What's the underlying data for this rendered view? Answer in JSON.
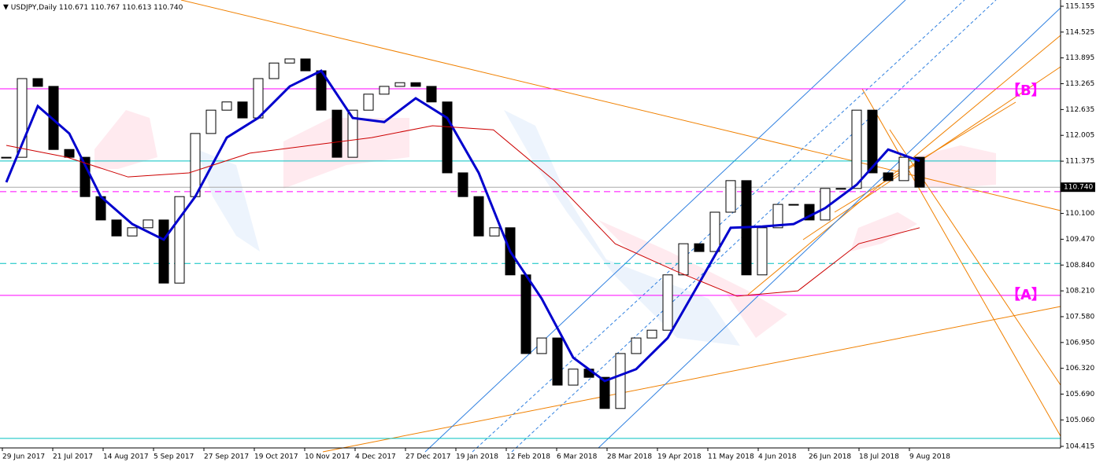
{
  "header": {
    "symbol": "USDJPY,Daily",
    "ohlc": "110.671 110.767 110.613 110.740"
  },
  "annotations": [
    "【B】",
    "【A】"
  ],
  "chart_data": {
    "type": "candlestick",
    "closes": [
      111.47,
      113.39,
      113.2,
      111.66,
      111.47,
      110.51,
      109.94,
      109.55,
      109.75,
      109.94,
      108.4,
      110.51,
      112.05,
      112.62,
      112.82,
      112.43,
      113.39,
      113.77,
      113.87,
      113.58,
      112.62,
      111.47,
      112.62,
      113.01,
      113.2,
      113.29,
      113.2,
      112.82,
      111.09,
      110.51,
      109.55,
      109.75,
      108.6,
      106.68,
      107.06,
      105.91,
      106.3,
      106.1,
      105.34,
      106.68,
      107.06,
      107.25,
      108.6,
      109.36,
      109.17,
      110.13,
      110.9,
      108.6,
      109.75,
      110.32,
      110.32,
      109.94,
      110.71,
      110.71,
      112.62,
      111.09,
      110.9,
      111.47,
      110.74
    ],
    "moving_averages": [
      {
        "color": "#0000cd",
        "values": [
          110.86,
          112.72,
          112.05,
          110.51,
          109.84,
          109.46,
          110.51,
          111.95,
          112.43,
          113.2,
          113.58,
          112.43,
          112.33,
          112.91,
          112.43,
          111.09,
          109.17,
          108.02,
          106.58,
          106.01,
          106.3,
          107.06,
          108.4,
          109.75,
          109.78,
          109.84,
          110.23,
          110.8,
          111.66,
          111.38
        ]
      },
      {
        "color": "#cc0000",
        "values": [
          111.76,
          111.47,
          110.99,
          111.09,
          111.57,
          111.76,
          111.95,
          112.24,
          112.14,
          110.9,
          109.36,
          108.69,
          108.08,
          108.21,
          109.36,
          109.75
        ]
      }
    ],
    "levels": [
      {
        "value": 113.14,
        "color": "#ff00ff",
        "dashed": false
      },
      {
        "value": 111.38,
        "color": "#00c0c0",
        "dashed": false
      },
      {
        "value": 110.63,
        "color": "#ff00ff",
        "dashed": true
      },
      {
        "value": 108.88,
        "color": "#00c0c0",
        "dashed": true
      },
      {
        "value": 108.1,
        "color": "#ff00ff",
        "dashed": false
      },
      {
        "value": 104.61,
        "color": "#00c0c0",
        "dashed": false
      }
    ],
    "price_label": {
      "value": 110.74,
      "label": "110.740"
    },
    "ylim": [
      104.377,
      115.308
    ],
    "yticks": [
      115.155,
      114.525,
      113.895,
      113.265,
      112.635,
      112.005,
      111.375,
      {
        "value": 110.1,
        "label": "110.100"
      },
      {
        "value": 109.47,
        "label": "109.470"
      },
      {
        "value": 108.84,
        "label": "108.840"
      },
      {
        "value": 108.21,
        "label": "108.210"
      },
      {
        "value": 107.58,
        "label": "107.580"
      },
      {
        "value": 106.95,
        "label": "106.950"
      },
      {
        "value": 106.32,
        "label": "106.320"
      },
      {
        "value": 105.69,
        "label": "105.690"
      },
      {
        "value": 105.06,
        "label": "105.060"
      },
      104.415
    ],
    "x_labels": [
      "29 Jun 2017",
      "21 Jul 2017",
      "14 Aug 2017",
      "5 Sep 2017",
      "27 Sep 2017",
      "19 Oct 2017",
      "10 Nov 2017",
      "4 Dec 2017",
      "27 Dec 2017",
      "19 Jan 2018",
      "12 Feb 2018",
      "6 Mar 2018",
      "28 Mar 2018",
      "19 Apr 2018",
      "11 May 2018",
      "4 Jun 2018",
      "26 Jun 2018",
      "18 Jul 2018",
      "9 Aug 2018"
    ]
  }
}
